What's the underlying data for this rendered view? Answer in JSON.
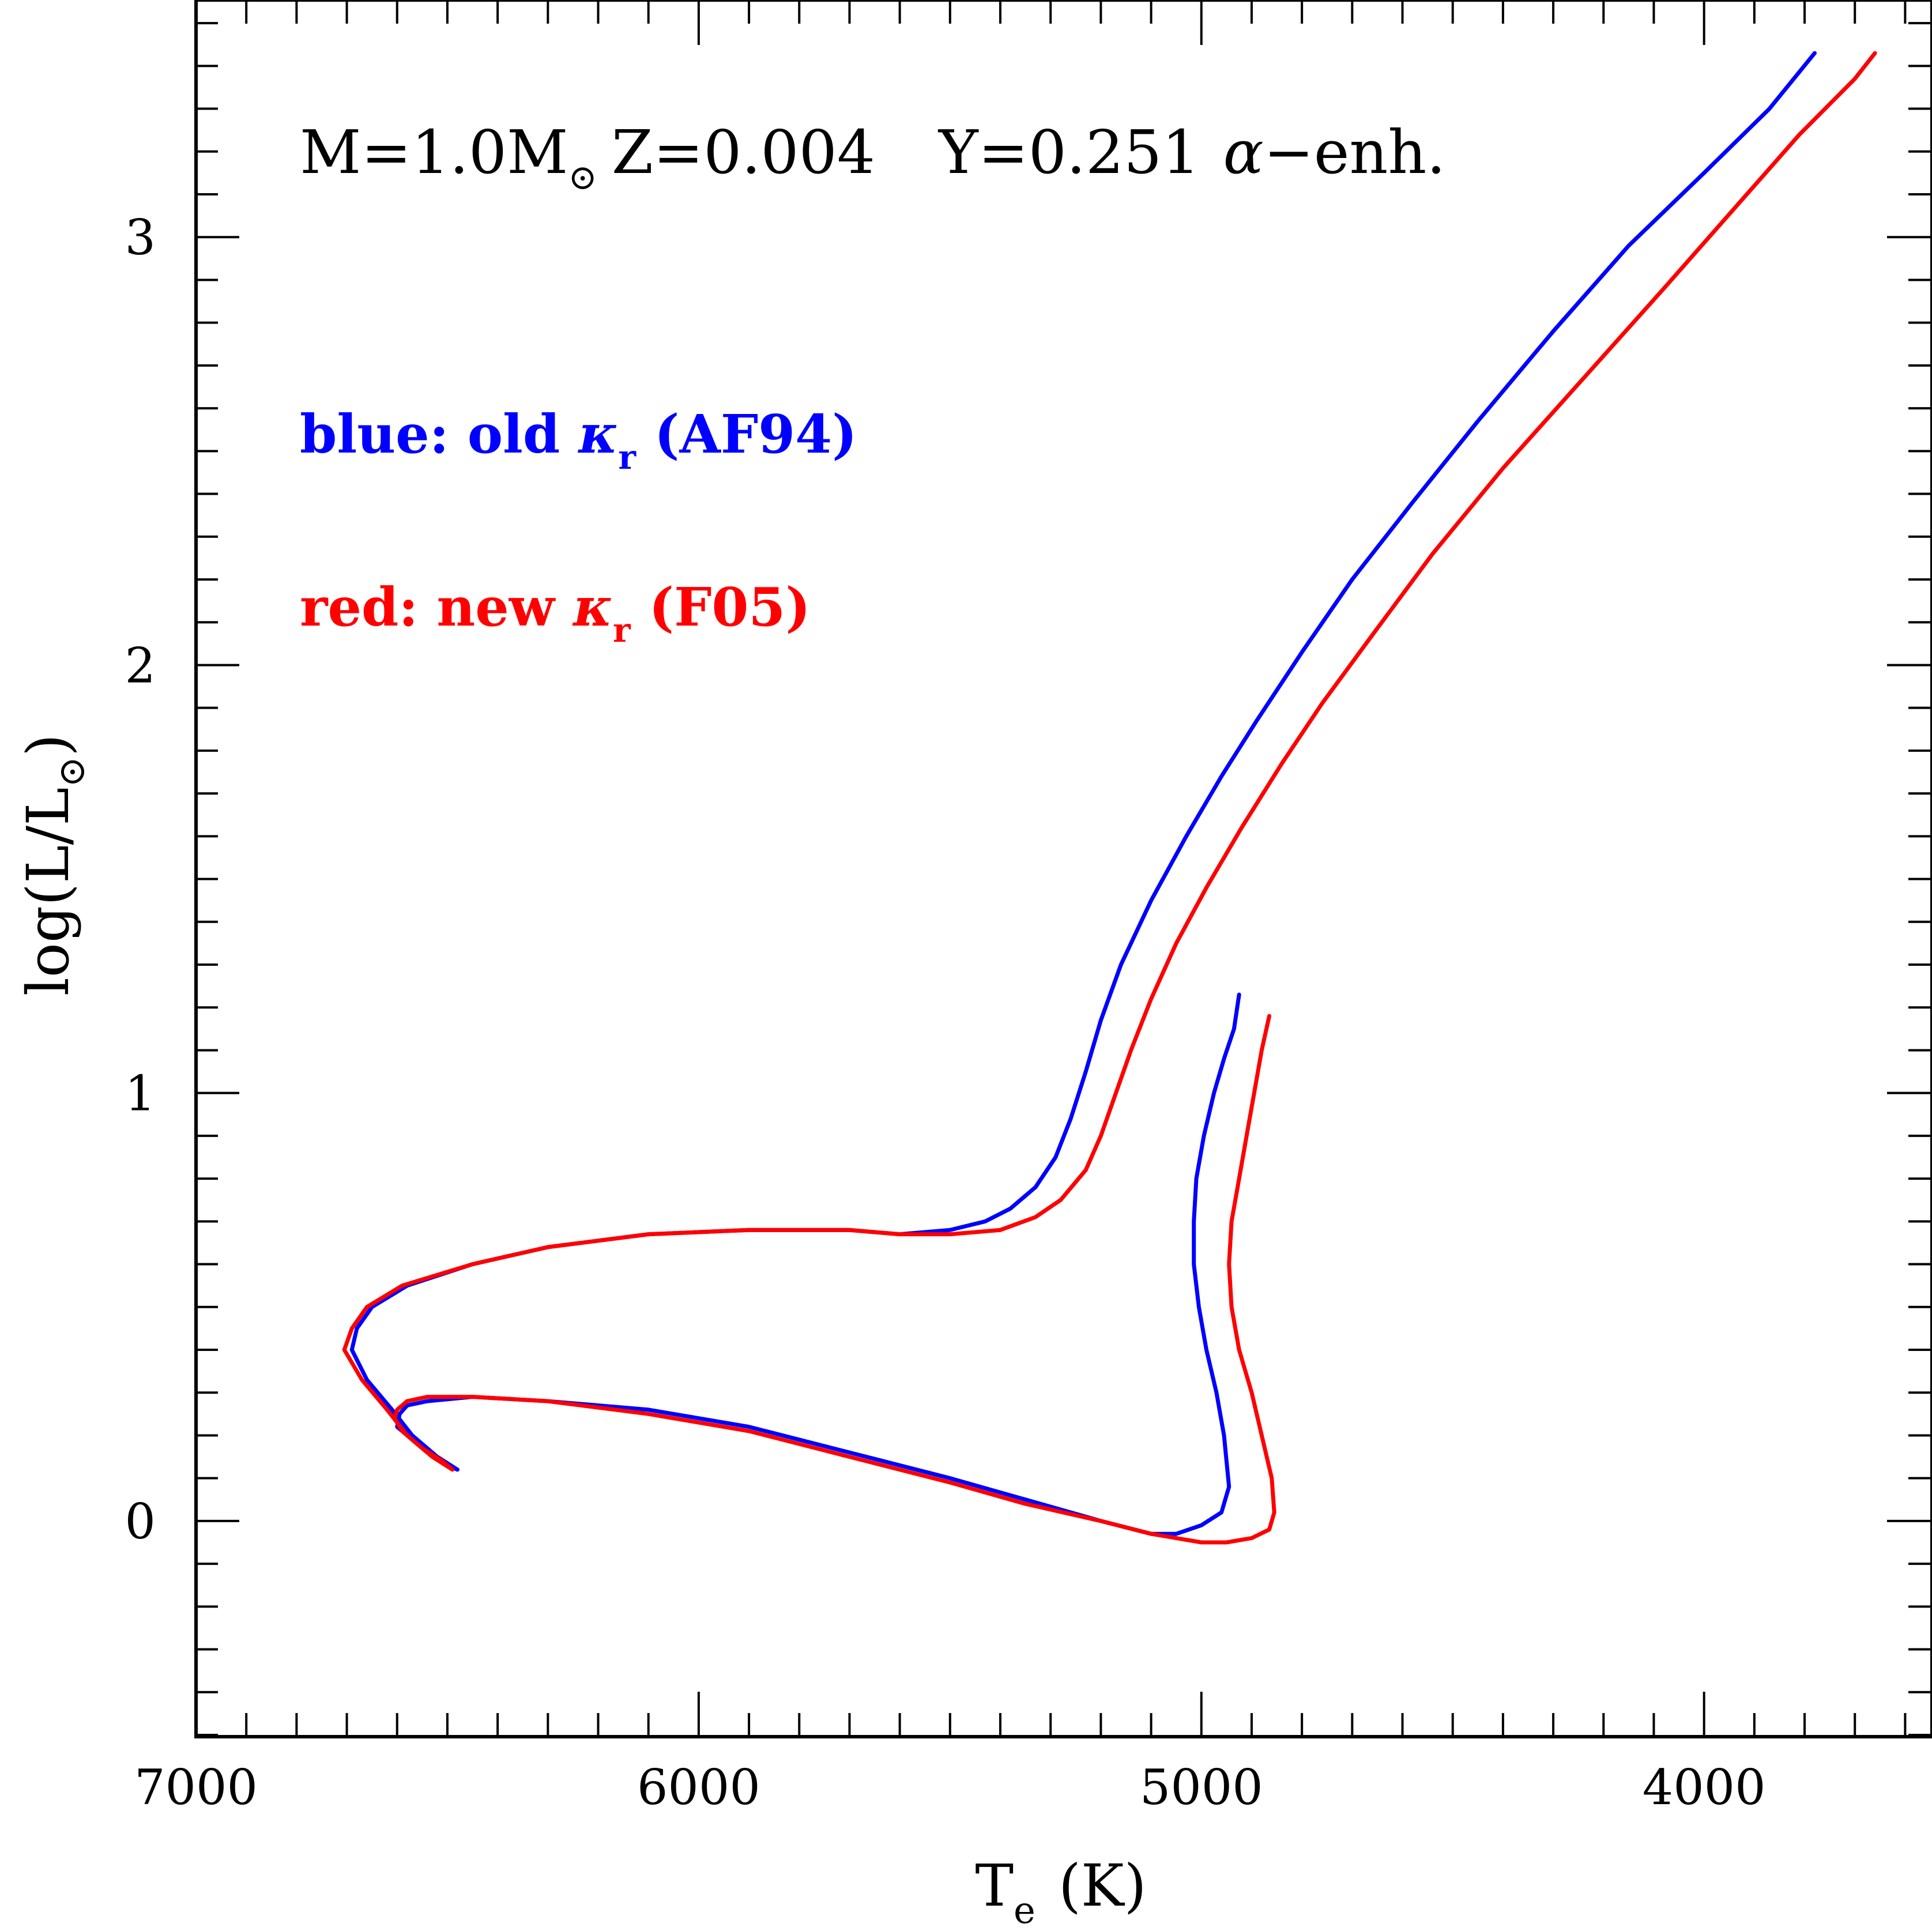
{
  "chart_data": {
    "type": "line",
    "title": "",
    "annotation": {
      "mass": "M=1.0M",
      "sun_symbol": "⊙",
      "z": "Z=0.004",
      "y": "Y=0.251",
      "alpha_symbol": "α",
      "alpha_suffix": "−enh."
    },
    "xlabel": {
      "main": "T",
      "sub": "e",
      "unit": "(K)"
    },
    "ylabel": {
      "prefix": "log(L/L",
      "sub": "⊙",
      "suffix": ")"
    },
    "xlim": [
      7000,
      3550
    ],
    "ylim": [
      -0.5,
      3.55
    ],
    "x_reversed": true,
    "x_ticks": [
      7000,
      6000,
      5000,
      4000
    ],
    "x_tick_labels": [
      "7000",
      "6000",
      "5000",
      "4000"
    ],
    "x_minor_step": 100,
    "y_ticks": [
      0,
      1,
      2,
      3
    ],
    "y_tick_labels": [
      "0",
      "1",
      "2",
      "3"
    ],
    "y_minor_step": 0.1,
    "grid": false,
    "legend": {
      "placement": "upper-left",
      "entries": [
        {
          "text": "blue: old ",
          "kappa": "κ",
          "sub": "r",
          "tail": " (AF94)",
          "color": "#0000ff"
        },
        {
          "text": "red: new ",
          "kappa": "κ",
          "sub": "r",
          "tail": " (F05)",
          "color": "#ff0000"
        }
      ]
    },
    "series": [
      {
        "color": "#0000ff",
        "points": [
          [
            6480,
            0.12
          ],
          [
            6500,
            0.13
          ],
          [
            6540,
            0.16
          ],
          [
            6580,
            0.2
          ],
          [
            6600,
            0.22
          ],
          [
            6595,
            0.25
          ],
          [
            6580,
            0.27
          ],
          [
            6540,
            0.28
          ],
          [
            6450,
            0.29
          ],
          [
            6300,
            0.28
          ],
          [
            6100,
            0.26
          ],
          [
            5900,
            0.22
          ],
          [
            5700,
            0.16
          ],
          [
            5500,
            0.1
          ],
          [
            5350,
            0.05
          ],
          [
            5200,
            0.0
          ],
          [
            5100,
            -0.03
          ],
          [
            5050,
            -0.03
          ],
          [
            5000,
            -0.01
          ],
          [
            4960,
            0.02
          ],
          [
            4945,
            0.08
          ],
          [
            4955,
            0.2
          ],
          [
            4970,
            0.3
          ],
          [
            4990,
            0.4
          ],
          [
            5005,
            0.5
          ],
          [
            5015,
            0.6
          ],
          [
            5015,
            0.7
          ],
          [
            5010,
            0.8
          ],
          [
            4995,
            0.9
          ],
          [
            4975,
            1.0
          ],
          [
            4955,
            1.08
          ],
          [
            4935,
            1.15
          ],
          [
            4925,
            1.23
          ]
        ]
      },
      {
        "color": "#0000ff",
        "points": [
          [
            6480,
            0.12
          ],
          [
            6520,
            0.15
          ],
          [
            6570,
            0.2
          ],
          [
            6610,
            0.26
          ],
          [
            6660,
            0.33
          ],
          [
            6690,
            0.4
          ],
          [
            6680,
            0.45
          ],
          [
            6650,
            0.5
          ],
          [
            6580,
            0.55
          ],
          [
            6450,
            0.6
          ],
          [
            6300,
            0.64
          ],
          [
            6100,
            0.67
          ],
          [
            5900,
            0.68
          ],
          [
            5700,
            0.68
          ],
          [
            5600,
            0.67
          ],
          [
            5500,
            0.68
          ],
          [
            5430,
            0.7
          ],
          [
            5380,
            0.73
          ],
          [
            5330,
            0.78
          ],
          [
            5290,
            0.85
          ],
          [
            5260,
            0.94
          ],
          [
            5230,
            1.05
          ],
          [
            5200,
            1.17
          ],
          [
            5160,
            1.3
          ],
          [
            5100,
            1.45
          ],
          [
            5030,
            1.6
          ],
          [
            4960,
            1.74
          ],
          [
            4890,
            1.87
          ],
          [
            4800,
            2.03
          ],
          [
            4700,
            2.2
          ],
          [
            4580,
            2.38
          ],
          [
            4450,
            2.57
          ],
          [
            4300,
            2.78
          ],
          [
            4150,
            2.98
          ],
          [
            4000,
            3.15
          ],
          [
            3870,
            3.3
          ],
          [
            3780,
            3.43
          ]
        ]
      },
      {
        "color": "#ff0000",
        "points": [
          [
            6490,
            0.12
          ],
          [
            6510,
            0.14
          ],
          [
            6550,
            0.17
          ],
          [
            6590,
            0.21
          ],
          [
            6605,
            0.24
          ],
          [
            6600,
            0.26
          ],
          [
            6580,
            0.28
          ],
          [
            6540,
            0.29
          ],
          [
            6450,
            0.29
          ],
          [
            6300,
            0.28
          ],
          [
            6100,
            0.25
          ],
          [
            5900,
            0.21
          ],
          [
            5700,
            0.15
          ],
          [
            5500,
            0.09
          ],
          [
            5350,
            0.04
          ],
          [
            5200,
            0.0
          ],
          [
            5100,
            -0.03
          ],
          [
            5000,
            -0.05
          ],
          [
            4950,
            -0.05
          ],
          [
            4900,
            -0.04
          ],
          [
            4865,
            -0.02
          ],
          [
            4855,
            0.02
          ],
          [
            4860,
            0.1
          ],
          [
            4880,
            0.2
          ],
          [
            4900,
            0.3
          ],
          [
            4925,
            0.4
          ],
          [
            4940,
            0.5
          ],
          [
            4945,
            0.6
          ],
          [
            4940,
            0.7
          ],
          [
            4925,
            0.8
          ],
          [
            4910,
            0.9
          ],
          [
            4895,
            1.0
          ],
          [
            4880,
            1.1
          ],
          [
            4865,
            1.18
          ]
        ]
      },
      {
        "color": "#ff0000",
        "points": [
          [
            6490,
            0.12
          ],
          [
            6530,
            0.15
          ],
          [
            6580,
            0.2
          ],
          [
            6620,
            0.26
          ],
          [
            6670,
            0.33
          ],
          [
            6705,
            0.4
          ],
          [
            6690,
            0.45
          ],
          [
            6660,
            0.5
          ],
          [
            6590,
            0.55
          ],
          [
            6450,
            0.6
          ],
          [
            6300,
            0.64
          ],
          [
            6100,
            0.67
          ],
          [
            5900,
            0.68
          ],
          [
            5700,
            0.68
          ],
          [
            5600,
            0.67
          ],
          [
            5500,
            0.67
          ],
          [
            5400,
            0.68
          ],
          [
            5330,
            0.71
          ],
          [
            5280,
            0.75
          ],
          [
            5230,
            0.82
          ],
          [
            5200,
            0.9
          ],
          [
            5170,
            1.0
          ],
          [
            5140,
            1.1
          ],
          [
            5100,
            1.22
          ],
          [
            5050,
            1.35
          ],
          [
            4990,
            1.48
          ],
          [
            4920,
            1.62
          ],
          [
            4840,
            1.77
          ],
          [
            4760,
            1.91
          ],
          [
            4660,
            2.07
          ],
          [
            4540,
            2.26
          ],
          [
            4400,
            2.46
          ],
          [
            4240,
            2.67
          ],
          [
            4080,
            2.88
          ],
          [
            3930,
            3.08
          ],
          [
            3810,
            3.24
          ],
          [
            3700,
            3.37
          ],
          [
            3660,
            3.43
          ]
        ]
      }
    ]
  }
}
